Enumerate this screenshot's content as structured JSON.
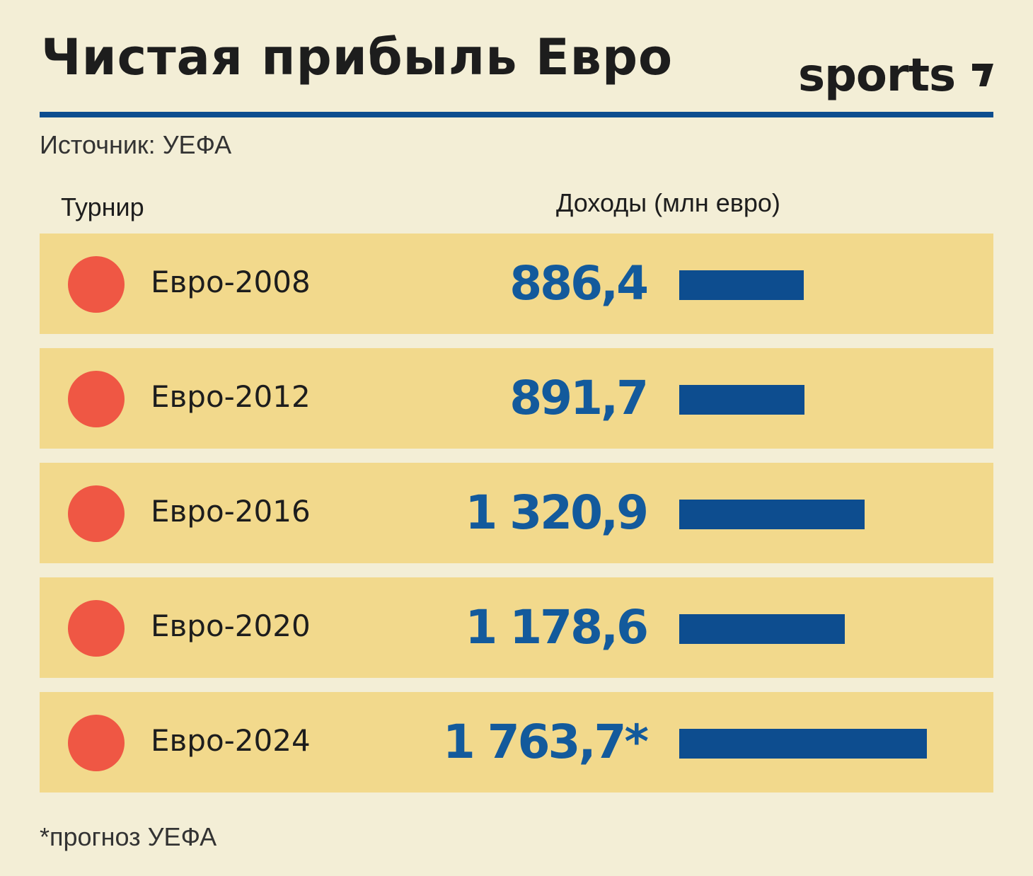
{
  "header": {
    "title": "Чистая прибыль Евро",
    "logo": "sports",
    "source": "Источник: УЕФА"
  },
  "columns": {
    "tournament": "Турнир",
    "income": "Доходы (млн евро)"
  },
  "chart_data": {
    "type": "bar",
    "orientation": "horizontal",
    "title": "Чистая прибыль Евро",
    "categories": [
      "Евро-2008",
      "Евро-2012",
      "Евро-2016",
      "Евро-2020",
      "Евро-2024"
    ],
    "values": [
      886.4,
      891.7,
      1320.9,
      1178.6,
      1763.7
    ],
    "value_labels": [
      "886,4",
      "891,7",
      "1 320,9",
      "1 178,6",
      "1 763,7*"
    ],
    "xlabel": "Доходы (млн евро)",
    "ylabel": "Турнир",
    "xlim": [
      0,
      1763.7
    ],
    "grid": false,
    "legend": "none",
    "colors": {
      "bar": "#0d4d8f",
      "value_text": "#135a9c",
      "row_background": "#f2d98c",
      "marker": "#ef5744",
      "page_background": "#f3eed6"
    }
  },
  "footnote": "*прогноз УЕФА"
}
